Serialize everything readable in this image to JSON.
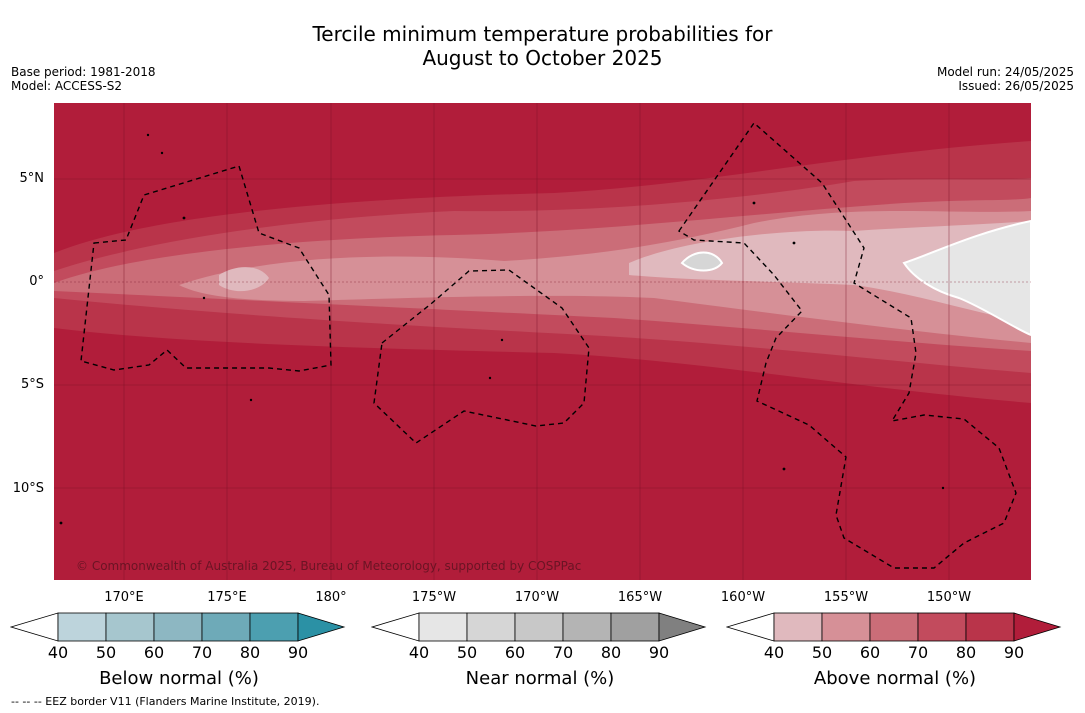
{
  "title_line1": "Tercile minimum temperature probabilities for",
  "title_line2": "August to October 2025",
  "meta_left": {
    "base_period": "Base period: 1981-2018",
    "model": "Model: ACCESS-S2"
  },
  "meta_right": {
    "model_run": "Model run: 24/05/2025",
    "issued": "Issued: 26/05/2025"
  },
  "copyright": "© Commonwealth of Australia 2025, Bureau of Meteorology, supported by COSPPac",
  "footer": "--  --  -- EEZ border V11 (Flanders Marine Institute, 2019).",
  "lat_labels": [
    "5°N",
    "0°",
    "5°S",
    "10°S"
  ],
  "lon_labels": [
    "170°E",
    "175°E",
    "180°",
    "175°W",
    "170°W",
    "165°W",
    "160°W",
    "155°W",
    "150°W"
  ],
  "colorbars": [
    {
      "label": "Below normal (%)",
      "ticks": [
        "40",
        "50",
        "60",
        "70",
        "80",
        "90"
      ],
      "colors": [
        "#ffffff",
        "#bdd4dc",
        "#a6c6ce",
        "#8db7c2",
        "#6eaab8",
        "#4c9fb0",
        "#2b91a5"
      ]
    },
    {
      "label": "Near normal (%)",
      "ticks": [
        "40",
        "50",
        "60",
        "70",
        "80",
        "90"
      ],
      "colors": [
        "#ffffff",
        "#e6e6e6",
        "#d6d6d6",
        "#c8c8c8",
        "#b4b4b4",
        "#a0a0a0",
        "#808080"
      ]
    },
    {
      "label": "Above normal (%)",
      "ticks": [
        "40",
        "50",
        "60",
        "70",
        "80",
        "90"
      ],
      "colors": [
        "#ffffff",
        "#e0b9be",
        "#d69097",
        "#cb6d78",
        "#c24b5d",
        "#b9344a",
        "#b11d3a"
      ]
    }
  ]
}
